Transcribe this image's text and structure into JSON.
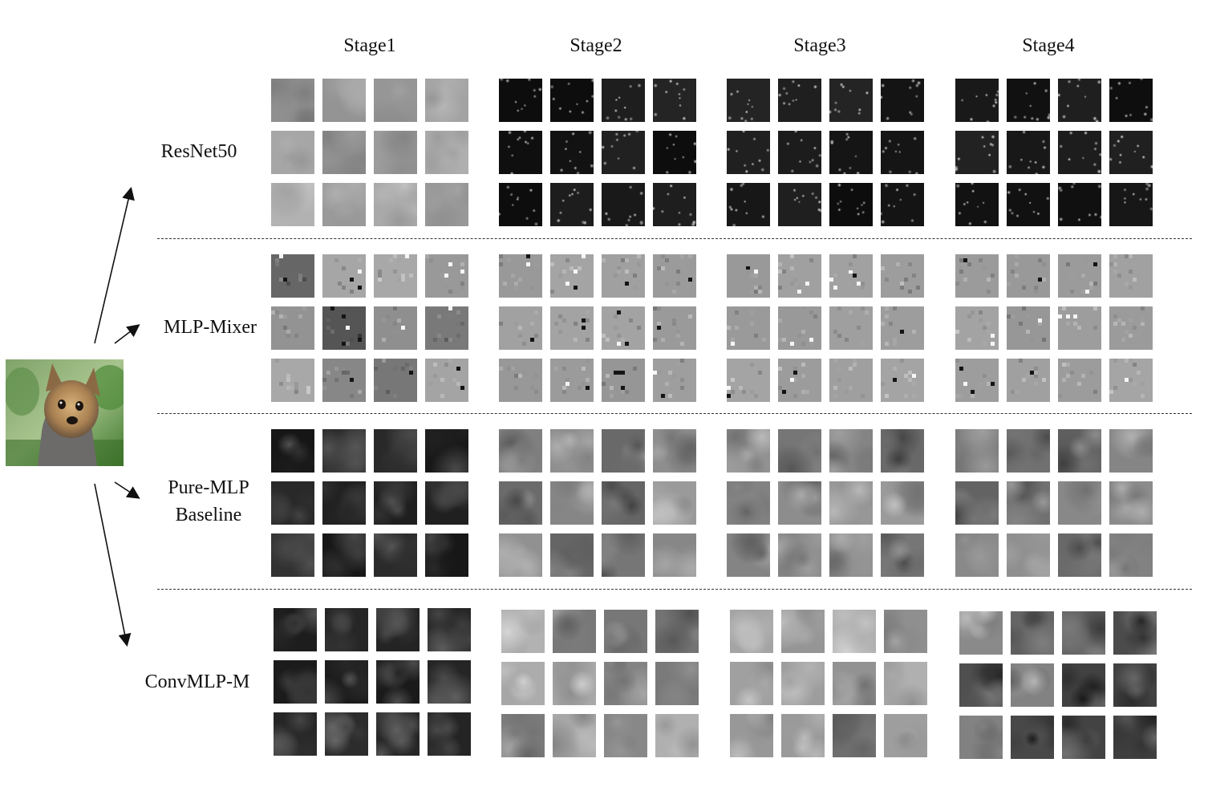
{
  "stages": [
    "Stage1",
    "Stage2",
    "Stage3",
    "Stage4"
  ],
  "models": [
    {
      "key": "resnet50",
      "label_lines": [
        "ResNet50"
      ]
    },
    {
      "key": "mlp-mixer",
      "label_lines": [
        "MLP-Mixer"
      ]
    },
    {
      "key": "pure-mlp",
      "label_lines": [
        "Pure-MLP",
        "Baseline"
      ]
    },
    {
      "key": "convmlp-m",
      "label_lines": [
        "ConvMLP-M"
      ]
    }
  ],
  "input_image": {
    "icon": "dog-photo-icon"
  },
  "colors": {
    "resnet_stage1": "#8e8e8e",
    "resnet_deep": "#0d0d0d",
    "mixer_gray": "#9a9a9a",
    "baseline_dark": "#1e1e1e",
    "baseline_mid": "#7c7c7c",
    "convmlp_dark": "#1a1a1a",
    "convmlp_mid": "#8a8a8a"
  }
}
